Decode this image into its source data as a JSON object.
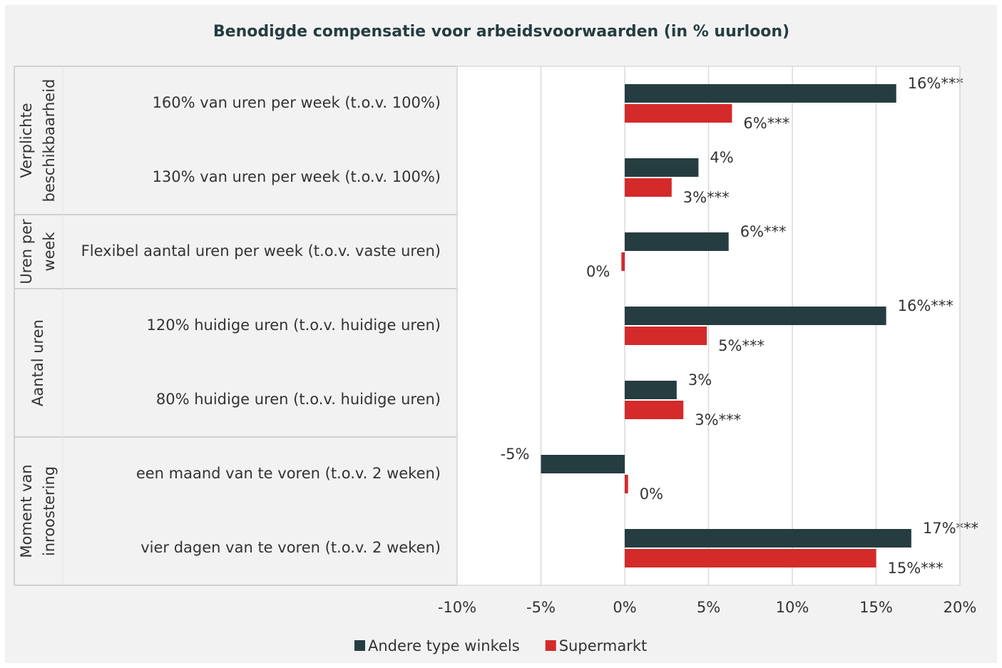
{
  "chart_data": {
    "type": "bar",
    "orientation": "horizontal",
    "title": "Benodigde compensatie voor arbeidsvoorwaarden (in % uurloon)",
    "groups": [
      {
        "label": [
          "Verplichte",
          "beschikbaarheid"
        ],
        "categories": [
          "160% van uren per week (t.o.v. 100%)",
          "130% van uren per week (t.o.v. 100%)"
        ]
      },
      {
        "label": [
          "Uren per",
          "week"
        ],
        "categories": [
          "Flexibel aantal uren per week (t.o.v. vaste uren)"
        ]
      },
      {
        "label": [
          "Aantal uren"
        ],
        "categories": [
          "120% huidige uren (t.o.v. huidige uren)",
          "80% huidige uren (t.o.v. huidige uren)"
        ]
      },
      {
        "label": [
          "Moment van",
          "inroostering"
        ],
        "categories": [
          "een maand van te voren (t.o.v. 2 weken)",
          "vier dagen van te voren (t.o.v. 2 weken)"
        ]
      }
    ],
    "series": [
      {
        "name": "Andere type winkels",
        "color": "#253d40",
        "values": [
          16.2,
          4.4,
          6.2,
          15.6,
          3.1,
          -5.0,
          17.1
        ],
        "value_labels": [
          "16%***",
          "4%",
          "6%***",
          "16%***",
          "3%",
          "-5%",
          "17%***"
        ]
      },
      {
        "name": "Supermarkt",
        "color": "#d42a2a",
        "values": [
          6.4,
          2.8,
          -0.2,
          4.9,
          3.5,
          0.2,
          15.0
        ],
        "value_labels": [
          "6%***",
          "3%***",
          "0%",
          "5%***",
          "3%***",
          "0%",
          "15%***"
        ]
      }
    ],
    "xlim": [
      -10,
      20
    ],
    "xticks": [
      {
        "value": -10,
        "label": "-10%"
      },
      {
        "value": -5,
        "label": "-5%"
      },
      {
        "value": 0,
        "label": "0%"
      },
      {
        "value": 5,
        "label": "5%"
      },
      {
        "value": 10,
        "label": "10%"
      },
      {
        "value": 15,
        "label": "15%"
      },
      {
        "value": 20,
        "label": "20%"
      }
    ],
    "grid": true,
    "legend": "bottom"
  }
}
